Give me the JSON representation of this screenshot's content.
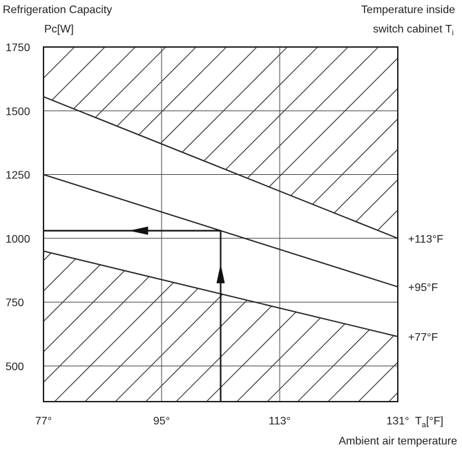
{
  "chart_data": {
    "type": "line",
    "title_left": [
      "Refrigeration Capacity",
      "Pc[W]"
    ],
    "title_right": [
      "Temperature inside",
      "switch cabinet T",
      "i"
    ],
    "xlabel_unit": [
      "T",
      "a",
      "[°F]"
    ],
    "xlabel": "Ambient air temperature",
    "x_ticks": [
      77,
      95,
      113,
      131
    ],
    "x_tick_labels": [
      "77°",
      "95°",
      "113°",
      "131°"
    ],
    "y_ticks": [
      500,
      750,
      1000,
      1250,
      1500,
      1750
    ],
    "y_tick_labels": [
      "500",
      "750",
      "1000",
      "1250",
      "1500",
      "1750"
    ],
    "xlim": [
      77,
      131
    ],
    "ylim": [
      360,
      1750
    ],
    "grid": true,
    "series": [
      {
        "name": "+113°F",
        "x": [
          77,
          131
        ],
        "y": [
          1555,
          1000
        ]
      },
      {
        "name": "+95°F",
        "x": [
          77,
          131
        ],
        "y": [
          1250,
          810
        ]
      },
      {
        "name": "+77°F",
        "x": [
          77,
          131
        ],
        "y": [
          950,
          615
        ]
      }
    ],
    "hatched_regions": [
      "above +113°F line",
      "below +77°F line"
    ],
    "example_path": {
      "x_start": 104,
      "y_start": 360,
      "y_read": 1030,
      "x_end": 77
    }
  }
}
